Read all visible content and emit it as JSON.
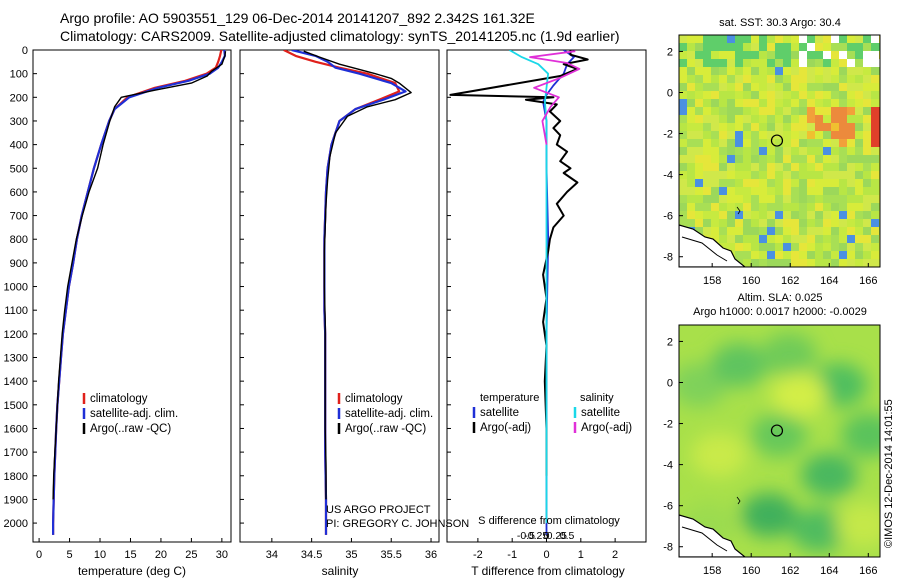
{
  "header": {
    "line1": "Argo profile: AO 5903551_129 06-Dec-2014 20141207_892 2.342S 161.32E",
    "line2": "Climatology: CARS2009. Satellite-adjusted climatology: synTS_20141205.nc (1.9d earlier)"
  },
  "credits": {
    "project": "US ARGO PROJECT",
    "pi": "PI: GREGORY C. JOHNSON"
  },
  "watermark": "©IMOS 12-Dec-2014 14:01:55",
  "colors": {
    "climatology": "#e0201b",
    "satellite": "#1f2fd6",
    "argo": "#000000",
    "satellite_salinity": "#19d8e8",
    "argo_salinity": "#e030d8"
  },
  "chart_data": [
    {
      "id": "temperature-profile",
      "type": "line",
      "xlabel": "temperature (deg C)",
      "ylabel": "depth (dbar)",
      "xlim": [
        -1,
        31.5
      ],
      "ylim": [
        2080,
        0
      ],
      "xticks": [
        0,
        5,
        10,
        15,
        20,
        25,
        30
      ],
      "yticks": [
        0,
        100,
        200,
        300,
        400,
        500,
        600,
        700,
        800,
        900,
        1000,
        1100,
        1200,
        1300,
        1400,
        1500,
        1600,
        1700,
        1800,
        1900,
        2000
      ],
      "legend": [
        "climatology",
        "satellite-adj. clim.",
        "Argo(..raw -QC)"
      ],
      "series": [
        {
          "name": "climatology",
          "color": "#e0201b",
          "x": [
            29.9,
            29.7,
            29.4,
            29.0,
            27.5,
            24.0,
            19.0,
            14.5,
            12.4,
            11.5,
            10.2,
            9.0,
            8.0,
            7.0,
            6.2,
            5.6,
            4.9,
            4.4,
            3.9,
            3.6,
            3.3,
            3.0,
            2.8,
            2.5,
            2.4,
            2.3,
            2.3
          ],
          "depth": [
            0,
            25,
            50,
            75,
            100,
            130,
            160,
            200,
            250,
            300,
            400,
            500,
            600,
            700,
            800,
            900,
            1000,
            1100,
            1200,
            1300,
            1400,
            1500,
            1600,
            1800,
            1900,
            2000,
            2050
          ]
        },
        {
          "name": "satellite-adj. clim.",
          "color": "#1f2fd6",
          "x": [
            30.4,
            30.5,
            30.0,
            29.4,
            28.0,
            24.5,
            19.5,
            14.8,
            12.4,
            11.5,
            10.2,
            9.0,
            8.0,
            7.0,
            6.2,
            5.6,
            4.9,
            4.4,
            3.9,
            3.6,
            3.3,
            3.0,
            2.8,
            2.5,
            2.4,
            2.3,
            2.3
          ],
          "depth": [
            0,
            25,
            50,
            75,
            100,
            130,
            160,
            200,
            250,
            300,
            400,
            500,
            600,
            700,
            800,
            900,
            1000,
            1100,
            1200,
            1300,
            1400,
            1500,
            1600,
            1800,
            1900,
            2000,
            2050
          ]
        },
        {
          "name": "Argo(..raw -QC)",
          "color": "#000000",
          "x": [
            30.6,
            30.5,
            30.0,
            28.3,
            27.6,
            25.0,
            19.0,
            13.5,
            12.4,
            11.6,
            10.5,
            9.6,
            8.2,
            7.1,
            6.1,
            5.4,
            4.7,
            4.2,
            3.8,
            3.5,
            3.2,
            3.0,
            2.8,
            2.6,
            2.4,
            2.3
          ],
          "depth": [
            5,
            25,
            60,
            90,
            110,
            140,
            170,
            200,
            240,
            300,
            400,
            500,
            600,
            700,
            800,
            900,
            1000,
            1100,
            1200,
            1300,
            1400,
            1500,
            1600,
            1700,
            1800,
            1900
          ]
        }
      ]
    },
    {
      "id": "salinity-profile",
      "type": "line",
      "xlabel": "salinity",
      "xlim": [
        33.6,
        36.1
      ],
      "ylim": [
        2080,
        0
      ],
      "xticks": [
        34,
        34.5,
        35,
        35.5,
        36
      ],
      "legend": [
        "climatology",
        "satellite-adj. clim.",
        "Argo(..raw -QC)"
      ],
      "series": [
        {
          "name": "climatology",
          "color": "#e0201b",
          "x": [
            34.15,
            34.3,
            34.55,
            34.85,
            35.2,
            35.55,
            35.6,
            35.35,
            35.05,
            34.85,
            34.75,
            34.7,
            34.68,
            34.67,
            34.66,
            34.66,
            34.66,
            34.66,
            34.67,
            34.67,
            34.67,
            34.67,
            34.68,
            34.68
          ],
          "depth": [
            0,
            25,
            50,
            75,
            100,
            140,
            175,
            210,
            250,
            300,
            400,
            500,
            600,
            700,
            800,
            900,
            1000,
            1100,
            1200,
            1300,
            1500,
            1700,
            1900,
            2050
          ]
        },
        {
          "name": "satellite-adj. clim.",
          "color": "#1f2fd6",
          "x": [
            34.25,
            34.55,
            34.7,
            34.8,
            35.1,
            35.5,
            35.68,
            35.4,
            35.05,
            34.85,
            34.75,
            34.7,
            34.68,
            34.67,
            34.66,
            34.66,
            34.66,
            34.66,
            34.67,
            34.67,
            34.67,
            34.67,
            34.68,
            34.68
          ],
          "depth": [
            0,
            25,
            50,
            75,
            100,
            140,
            175,
            210,
            250,
            300,
            400,
            500,
            600,
            700,
            800,
            900,
            1000,
            1100,
            1200,
            1300,
            1500,
            1700,
            1900,
            2050
          ]
        },
        {
          "name": "Argo(..raw -QC)",
          "color": "#000000",
          "x": [
            34.4,
            34.6,
            34.85,
            35.3,
            35.5,
            35.6,
            35.75,
            35.55,
            35.2,
            34.95,
            34.8,
            34.73,
            34.7,
            34.68,
            34.67,
            34.66,
            34.66,
            34.67,
            34.67,
            34.67,
            34.67,
            34.68,
            34.68
          ],
          "depth": [
            5,
            30,
            60,
            100,
            120,
            140,
            180,
            210,
            240,
            280,
            350,
            450,
            550,
            650,
            750,
            850,
            1000,
            1150,
            1300,
            1450,
            1600,
            1750,
            1900
          ]
        }
      ]
    },
    {
      "id": "difference-profile",
      "type": "line",
      "xlabel": "T difference from climatology",
      "x2label": "S difference from climatology",
      "xlim": [
        -2.9,
        2.9
      ],
      "ylim": [
        2080,
        0
      ],
      "xticks": [
        -2,
        -1,
        0,
        1,
        2
      ],
      "x2ticks": [
        "-0.5",
        "-0.25",
        "0",
        "0.25",
        "0.5"
      ],
      "x2tick_values": [
        -0.5,
        -0.25,
        0,
        0.25,
        0.5
      ],
      "legend_headers": [
        "temperature",
        "salinity"
      ],
      "legend": [
        "satellite",
        "Argo(-adj)",
        "satellite",
        "Argo(-adj)"
      ],
      "series": [
        {
          "name": "T satellite",
          "color": "#1f2fd6",
          "x": [
            0.5,
            0.8,
            0.6,
            0.5,
            0.2,
            0.0,
            -0.1,
            0.0,
            0.0,
            0.05,
            0.0,
            0.0,
            0.0,
            0.0
          ],
          "depth": [
            0,
            30,
            60,
            100,
            150,
            190,
            220,
            300,
            500,
            800,
            1200,
            1500,
            1800,
            2050
          ]
        },
        {
          "name": "T Argo(-adj)",
          "color": "#000000",
          "x": [
            0.7,
            0.7,
            1.2,
            0.5,
            0.9,
            0.4,
            -2.8,
            0.2,
            -0.6,
            0.3,
            0.1,
            0.4,
            0.2,
            0.4,
            0.3,
            0.6,
            0.4,
            0.7,
            0.5,
            0.9,
            0.6,
            0.3,
            0.5,
            0.2,
            0.1,
            0.05,
            -0.1,
            0.0,
            -0.1,
            0.0,
            -0.05,
            0.0,
            0.0
          ],
          "depth": [
            0,
            20,
            40,
            60,
            80,
            110,
            190,
            200,
            210,
            230,
            260,
            300,
            330,
            360,
            400,
            430,
            470,
            500,
            520,
            560,
            600,
            650,
            700,
            750,
            800,
            850,
            950,
            1050,
            1150,
            1250,
            1400,
            1600,
            1800
          ]
        },
        {
          "name": "S satellite",
          "color": "#19d8e8",
          "x": [
            -0.45,
            -0.3,
            -0.1,
            0.02,
            0.0,
            -0.02,
            0.0,
            0.0,
            0.0,
            0.0
          ],
          "x_axis": "S",
          "depth": [
            0,
            30,
            60,
            100,
            160,
            220,
            300,
            600,
            1200,
            2000
          ]
        },
        {
          "name": "S Argo(-adj)",
          "color": "#e030d8",
          "x": [
            0.35,
            -0.2,
            0.25,
            0.4,
            0.15,
            -0.15,
            0.15,
            0.05,
            -0.05,
            0.0
          ],
          "x_axis": "S",
          "depth": [
            5,
            30,
            55,
            80,
            120,
            160,
            200,
            240,
            300,
            400
          ]
        }
      ]
    },
    {
      "id": "sst-map",
      "type": "heatmap",
      "title": "sat. SST: 30.3 Argo: 30.4",
      "xticks": [
        158,
        160,
        162,
        164,
        166
      ],
      "yticks": [
        2,
        0,
        -2,
        -4,
        -6,
        -8
      ],
      "xlim": [
        156.3,
        166.6
      ],
      "ylim": [
        -8.5,
        2.8
      ],
      "float_position": [
        161.32,
        -2.342
      ]
    },
    {
      "id": "sla-map",
      "type": "heatmap",
      "title": "Altim. SLA: 0.025",
      "subtitle": "Argo h1000: 0.0017 h2000: -0.0029",
      "xticks": [
        158,
        160,
        162,
        164,
        166
      ],
      "yticks": [
        2,
        0,
        -2,
        -4,
        -6,
        -8
      ],
      "xlim": [
        156.3,
        166.6
      ],
      "ylim": [
        -8.5,
        2.8
      ],
      "float_position": [
        161.32,
        -2.342
      ]
    }
  ]
}
